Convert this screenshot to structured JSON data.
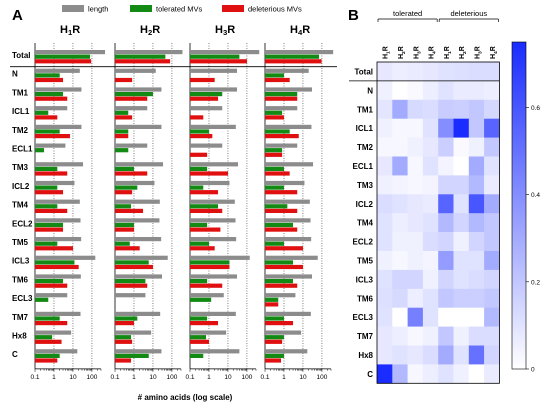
{
  "panels": {
    "a": "A",
    "b": "B"
  },
  "chart_data": [
    {
      "type": "bar",
      "orientation": "horizontal",
      "xscale": "log",
      "xlim": [
        0.1,
        300
      ],
      "xticks": [
        "0.1",
        "1",
        "10",
        "100"
      ],
      "xlabel": "# amino acids (log scale)",
      "legend": {
        "placement": "top",
        "entries": [
          {
            "name": "length",
            "color": "#8c8c8c"
          },
          {
            "name": "tolerated MVs",
            "color": "#138a13"
          },
          {
            "name": "deleterious MVs",
            "color": "#e01010"
          }
        ]
      },
      "categories": [
        "Total",
        "N",
        "TM1",
        "ICL1",
        "TM2",
        "ECL1",
        "TM3",
        "ICL2",
        "TM4",
        "ECL2",
        "TM5",
        "ICL3",
        "TM6",
        "ECL3",
        "TM7",
        "Hx8",
        "C"
      ],
      "facets": [
        {
          "label": "H",
          "sub": "1",
          "suffix": "R",
          "series": [
            {
              "name": "length",
              "values": [
                490,
                23,
                28,
                5,
                28,
                4,
                34,
                12,
                23,
                25,
                27,
                150,
                26,
                5,
                25,
                8,
                17
              ]
            },
            {
              "name": "tolerated MVs",
              "values": [
                80,
                2,
                3,
                0.5,
                2,
                0.3,
                1.5,
                1.5,
                1.5,
                3,
                1.5,
                12,
                3,
                0.5,
                2,
                0.8,
                2
              ]
            },
            {
              "name": "deleterious MVs",
              "values": [
                90,
                3,
                5,
                1.5,
                7,
                0,
                5,
                3,
                5,
                3,
                10,
                20,
                5,
                0,
                5,
                2.5,
                1.5
              ]
            }
          ]
        },
        {
          "label": "H",
          "sub": "2",
          "suffix": "R",
          "series": [
            {
              "name": "length",
              "values": [
                359,
                14,
                28,
                5,
                28,
                5,
                34,
                12,
                23,
                22,
                27,
                60,
                30,
                4,
                24,
                8,
                28
              ]
            },
            {
              "name": "tolerated MVs",
              "values": [
                45,
                0,
                10,
                0.5,
                0.5,
                0.5,
                1,
                1.5,
                0.7,
                1,
                0.6,
                6,
                4,
                0,
                1.5,
                0.7,
                6
              ]
            },
            {
              "name": "deleterious MVs",
              "values": [
                80,
                0.8,
                5,
                0.8,
                0.5,
                0,
                5,
                0.8,
                3,
                1,
                2,
                10,
                5,
                0,
                1,
                0.8,
                0.7
              ]
            }
          ]
        },
        {
          "label": "H",
          "sub": "3",
          "suffix": "R",
          "series": [
            {
              "name": "length",
              "values": [
                445,
                30,
                30,
                5,
                26,
                5,
                34,
                12,
                23,
                25,
                27,
                140,
                30,
                6,
                26,
                8,
                40
              ]
            },
            {
              "name": "tolerated MVs",
              "values": [
                40,
                0,
                5,
                0,
                1,
                0,
                0.8,
                0.5,
                3,
                0.8,
                1,
                12,
                0.8,
                1.3,
                0.8,
                0.7,
                0.5
              ]
            },
            {
              "name": "deleterious MVs",
              "values": [
                100,
                2,
                3,
                0.5,
                1.5,
                0.8,
                10,
                3,
                5,
                4,
                2,
                12,
                5,
                0,
                3,
                1,
                0
              ]
            }
          ]
        },
        {
          "label": "H",
          "sub": "4",
          "suffix": "R",
          "series": [
            {
              "name": "length",
              "values": [
                390,
                20,
                30,
                5,
                28,
                5,
                34,
                12,
                23,
                25,
                27,
                60,
                30,
                4,
                26,
                8,
                17
              ]
            },
            {
              "name": "tolerated MVs",
              "values": [
                70,
                1,
                5,
                0.8,
                2,
                0.8,
                1,
                1,
                1.5,
                3,
                1,
                3,
                3,
                0.5,
                1,
                1,
                1
              ]
            },
            {
              "name": "deleterious MVs",
              "values": [
                95,
                2,
                5,
                1,
                6,
                0.8,
                2,
                5,
                5,
                5,
                10,
                10,
                5,
                0.5,
                3,
                0.8,
                0.7
              ]
            }
          ]
        }
      ]
    },
    {
      "type": "heatmap",
      "column_groups": [
        {
          "label": "tolerated",
          "span": 4
        },
        {
          "label": "deleterious",
          "span": 4
        }
      ],
      "columns": [
        {
          "label": "H",
          "sub": "1",
          "suffix": "R"
        },
        {
          "label": "H",
          "sub": "2",
          "suffix": "R"
        },
        {
          "label": "H",
          "sub": "3",
          "suffix": "R"
        },
        {
          "label": "H",
          "sub": "4",
          "suffix": "R"
        },
        {
          "label": "H",
          "sub": "1",
          "suffix": "R"
        },
        {
          "label": "H",
          "sub": "2",
          "suffix": "R"
        },
        {
          "label": "H",
          "sub": "3",
          "suffix": "R"
        },
        {
          "label": "H",
          "sub": "4",
          "suffix": "R"
        }
      ],
      "rows": [
        "Total",
        "N",
        "TM1",
        "ICL1",
        "TM2",
        "ECL1",
        "TM3",
        "ICL2",
        "TM4",
        "ECL2",
        "TM5",
        "ICL3",
        "TM6",
        "ECL3",
        "TM7",
        "Hx8",
        "C"
      ],
      "values": [
        [
          0.08,
          0.06,
          0.07,
          0.08,
          0.1,
          0.11,
          0.12,
          0.12
        ],
        [
          0.05,
          0.0,
          0.02,
          0.06,
          0.1,
          0.07,
          0.07,
          0.06
        ],
        [
          0.09,
          0.3,
          0.13,
          0.12,
          0.18,
          0.17,
          0.2,
          0.14
        ],
        [
          0.05,
          0.03,
          0.03,
          0.1,
          0.4,
          0.75,
          0.2,
          0.55
        ],
        [
          0.03,
          0.03,
          0.05,
          0.08,
          0.17,
          0.02,
          0.05,
          0.2
        ],
        [
          0.08,
          0.3,
          0.03,
          0.1,
          0.04,
          0.0,
          0.3,
          0.1
        ],
        [
          0.05,
          0.04,
          0.03,
          0.04,
          0.15,
          0.15,
          0.25,
          0.07
        ],
        [
          0.12,
          0.1,
          0.08,
          0.07,
          0.55,
          0.1,
          0.6,
          0.3
        ],
        [
          0.1,
          0.06,
          0.08,
          0.1,
          0.25,
          0.15,
          0.25,
          0.2
        ],
        [
          0.1,
          0.05,
          0.05,
          0.12,
          0.15,
          0.05,
          0.15,
          0.2
        ],
        [
          0.05,
          0.03,
          0.05,
          0.04,
          0.35,
          0.1,
          0.1,
          0.3
        ],
        [
          0.1,
          0.15,
          0.15,
          0.05,
          0.15,
          0.1,
          0.12,
          0.15
        ],
        [
          0.11,
          0.13,
          0.06,
          0.1,
          0.2,
          0.17,
          0.17,
          0.2
        ],
        [
          0.1,
          0.0,
          0.45,
          0.1,
          0.0,
          0.0,
          0.0,
          0.25
        ],
        [
          0.08,
          0.06,
          0.03,
          0.05,
          0.2,
          0.05,
          0.12,
          0.12
        ],
        [
          0.08,
          0.1,
          0.08,
          0.12,
          0.3,
          0.1,
          0.5,
          0.15
        ],
        [
          0.85,
          0.25,
          0.03,
          0.06,
          0.1,
          0.05,
          0.0,
          0.07
        ]
      ],
      "colorbar": {
        "ticks": [
          0,
          0.2,
          0.4,
          0.6
        ],
        "tick_labels": [
          "0",
          "0.2",
          "0.4",
          "0.6"
        ],
        "min": 0,
        "max": 0.75,
        "color_low": "#ffffff",
        "color_high": "#1a2cff"
      }
    }
  ]
}
